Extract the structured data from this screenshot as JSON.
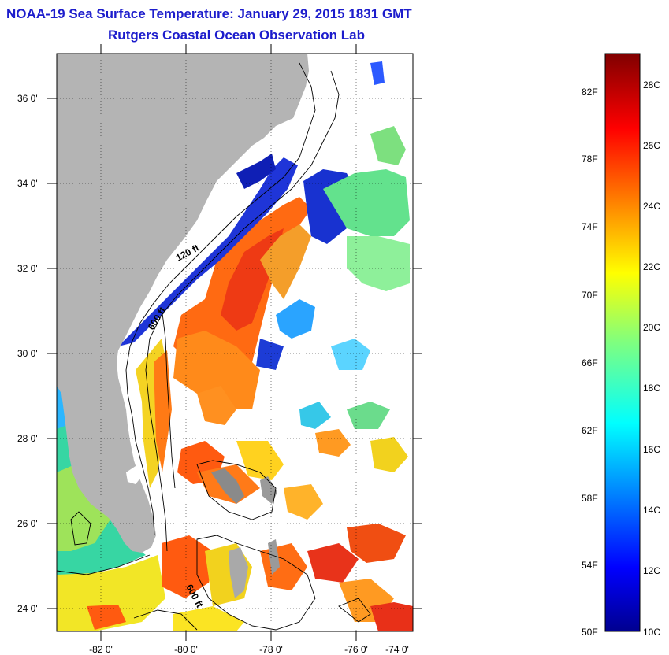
{
  "title": "NOAA-19 Sea Surface Temperature:  January 29, 2015 1831 GMT",
  "subtitle": "Rutgers Coastal Ocean Observation Lab",
  "map": {
    "lat_labels": [
      "36 0'",
      "34 0'",
      "32 0'",
      "30 0'",
      "28 0'",
      "26 0'",
      "24 0'"
    ],
    "lon_labels": [
      "-82 0'",
      "-80 0'",
      "-78 0'",
      "-76 0'",
      "-74 0'"
    ],
    "contour_labels": [
      "120 ft",
      "600 ft",
      "600 ft"
    ],
    "land_color": "#b4b4b4"
  },
  "colorbar": {
    "fahrenheit_labels": [
      "82F",
      "78F",
      "74F",
      "70F",
      "66F",
      "62F",
      "58F",
      "54F",
      "50F"
    ],
    "celsius_labels": [
      "28C",
      "26C",
      "24C",
      "22C",
      "20C",
      "18C",
      "16C",
      "14C",
      "12C",
      "10C"
    ],
    "colormap": "jet",
    "range_c": [
      10,
      29
    ]
  }
}
